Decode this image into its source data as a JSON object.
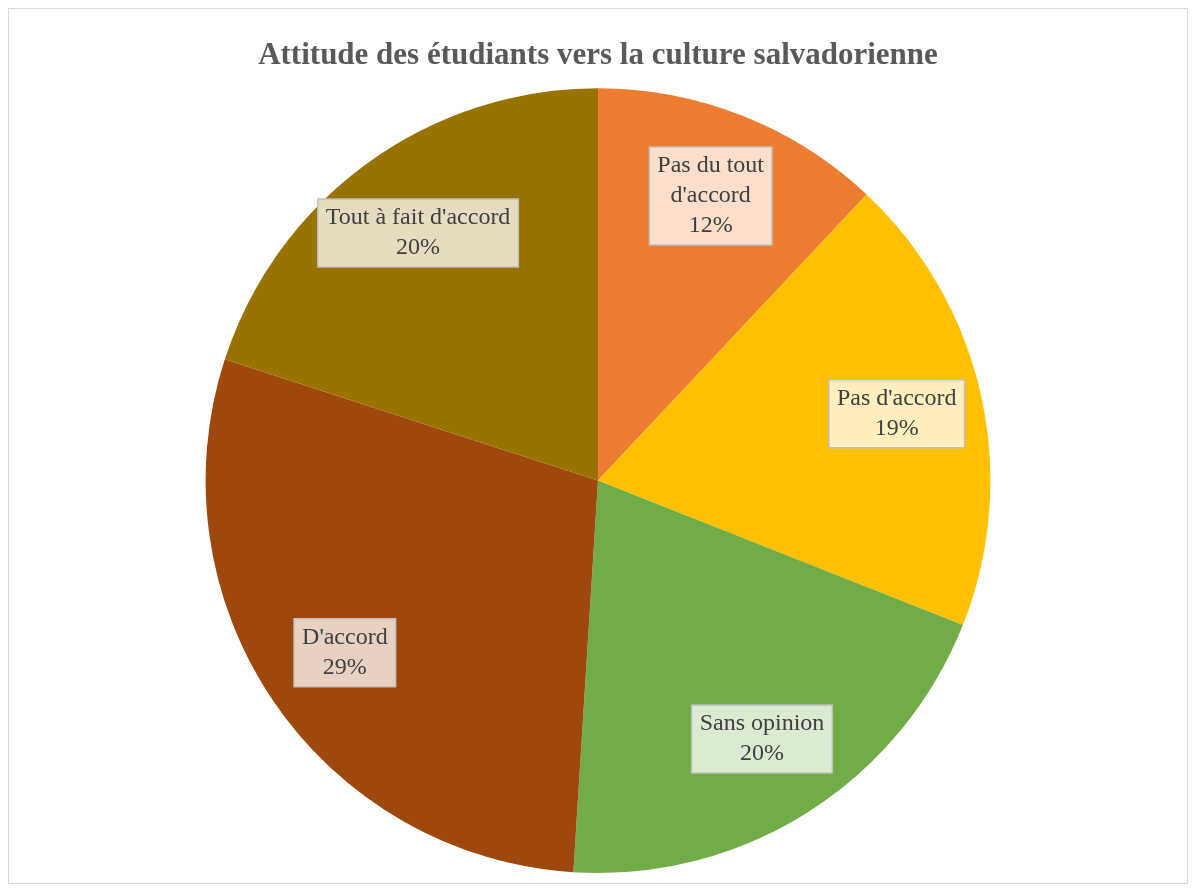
{
  "chart_data": {
    "type": "pie",
    "title": "Attitude des étudiants vers la culture salvadorienne",
    "categories": [
      "Pas du tout d'accord",
      "Pas d'accord",
      "Sans opinion",
      "D'accord",
      "Tout à fait d'accord"
    ],
    "values": [
      12,
      19,
      20,
      29,
      20
    ],
    "colors": [
      "#ed7d31",
      "#ffc000",
      "#70ad47",
      "#9e480e",
      "#997300"
    ],
    "value_labels": [
      "12%",
      "19%",
      "20%",
      "29%",
      "20%"
    ],
    "legend": false
  }
}
